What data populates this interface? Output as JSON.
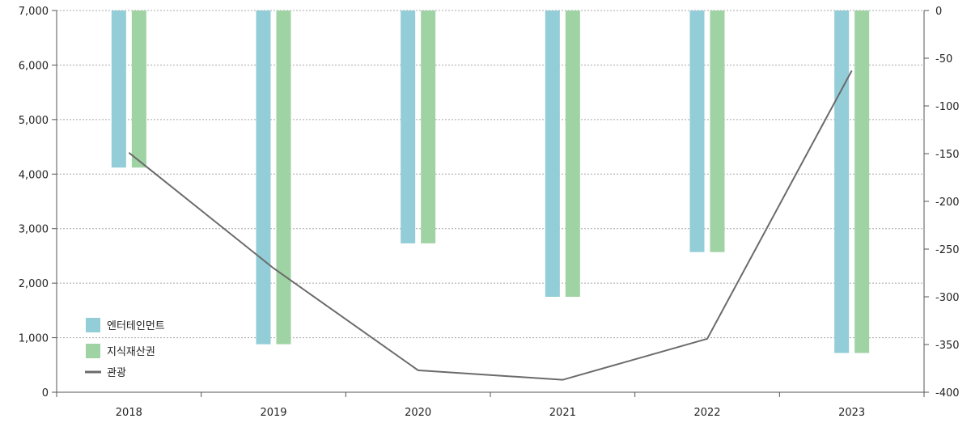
{
  "chart_data": {
    "type": "bar",
    "categories": [
      "2018",
      "2019",
      "2020",
      "2021",
      "2022",
      "2023"
    ],
    "series": [
      {
        "name": "엔터테인먼트",
        "type": "bar",
        "axis": "left",
        "values": [
          4120,
          880,
          2730,
          1750,
          2570,
          720
        ]
      },
      {
        "name": "지식재산권",
        "type": "bar",
        "axis": "left",
        "values": [
          4120,
          880,
          2730,
          1750,
          2570,
          720
        ]
      },
      {
        "name": "관광",
        "type": "line",
        "axis": "right",
        "values": [
          -149,
          -270,
          -377,
          -387,
          -344,
          -63
        ]
      }
    ],
    "left_axis": {
      "ylim": [
        0,
        7000
      ],
      "ticks": [
        "0",
        "1,000",
        "2,000",
        "3,000",
        "4,000",
        "5,000",
        "6,000",
        "7,000"
      ],
      "tick_values": [
        0,
        1000,
        2000,
        3000,
        4000,
        5000,
        6000,
        7000
      ]
    },
    "right_axis": {
      "ylim": [
        -400,
        0
      ],
      "ticks": [
        "-400",
        "-350",
        "-300",
        "-250",
        "-200",
        "-150",
        "-100",
        "-50",
        "0"
      ],
      "tick_values": [
        -400,
        -350,
        -300,
        -250,
        -200,
        -150,
        -100,
        -50,
        0
      ]
    },
    "bar_baseline": 7000,
    "grid": true,
    "legend": "bottom-left",
    "colors": {
      "bar1": "#92cdd8",
      "bar2": "#9fd3a3",
      "line": "#6b6b6b",
      "grid": "#a8a8a8",
      "axis": "#555555"
    }
  }
}
